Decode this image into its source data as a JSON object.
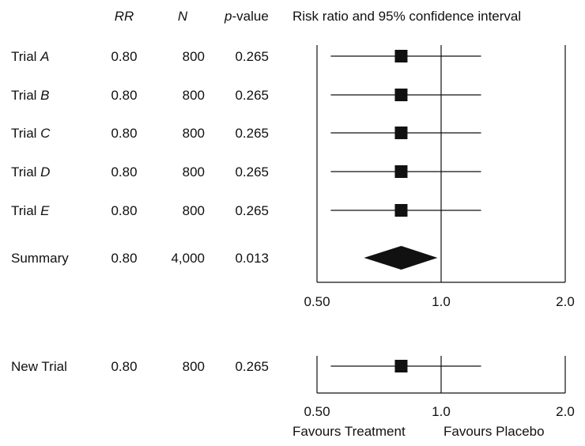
{
  "chart_data": {
    "type": "forest",
    "columns": {
      "rr": "RR",
      "n": "N",
      "p_italic": "p",
      "p_rest": "-value",
      "plot": "Risk ratio and 95% confidence interval"
    },
    "scale": "log",
    "xlim": [
      0.5,
      2.0
    ],
    "ticks": [
      {
        "value": 0.5,
        "label": "0.50"
      },
      {
        "value": 1.0,
        "label": "1.0"
      },
      {
        "value": 2.0,
        "label": "2.0"
      }
    ],
    "reference_line": 1.0,
    "panels": [
      {
        "rows": [
          {
            "label": "Trial ",
            "label_italic": "A",
            "rr_text": "0.80",
            "n_text": "800",
            "p_text": "0.265",
            "rr": 0.8,
            "ci": [
              0.54,
              1.25
            ],
            "marker": "square"
          },
          {
            "label": "Trial ",
            "label_italic": "B",
            "rr_text": "0.80",
            "n_text": "800",
            "p_text": "0.265",
            "rr": 0.8,
            "ci": [
              0.54,
              1.25
            ],
            "marker": "square"
          },
          {
            "label": "Trial ",
            "label_italic": "C",
            "rr_text": "0.80",
            "n_text": "800",
            "p_text": "0.265",
            "rr": 0.8,
            "ci": [
              0.54,
              1.25
            ],
            "marker": "square"
          },
          {
            "label": "Trial ",
            "label_italic": "D",
            "rr_text": "0.80",
            "n_text": "800",
            "p_text": "0.265",
            "rr": 0.8,
            "ci": [
              0.54,
              1.25
            ],
            "marker": "square"
          },
          {
            "label": "Trial ",
            "label_italic": "E",
            "rr_text": "0.80",
            "n_text": "800",
            "p_text": "0.265",
            "rr": 0.8,
            "ci": [
              0.54,
              1.25
            ],
            "marker": "square"
          },
          {
            "label": "Summary",
            "label_italic": "",
            "rr_text": "0.80",
            "n_text": "4,000",
            "p_text": "0.013",
            "rr": 0.8,
            "ci": [
              0.65,
              0.98
            ],
            "marker": "diamond"
          }
        ]
      },
      {
        "rows": [
          {
            "label": "New Trial",
            "label_italic": "",
            "rr_text": "0.80",
            "n_text": "800",
            "p_text": "0.265",
            "rr": 0.8,
            "ci": [
              0.54,
              1.25
            ],
            "marker": "square"
          }
        ]
      }
    ],
    "direction_labels": {
      "left": "Favours Treatment",
      "right": "Favours Placebo"
    }
  }
}
